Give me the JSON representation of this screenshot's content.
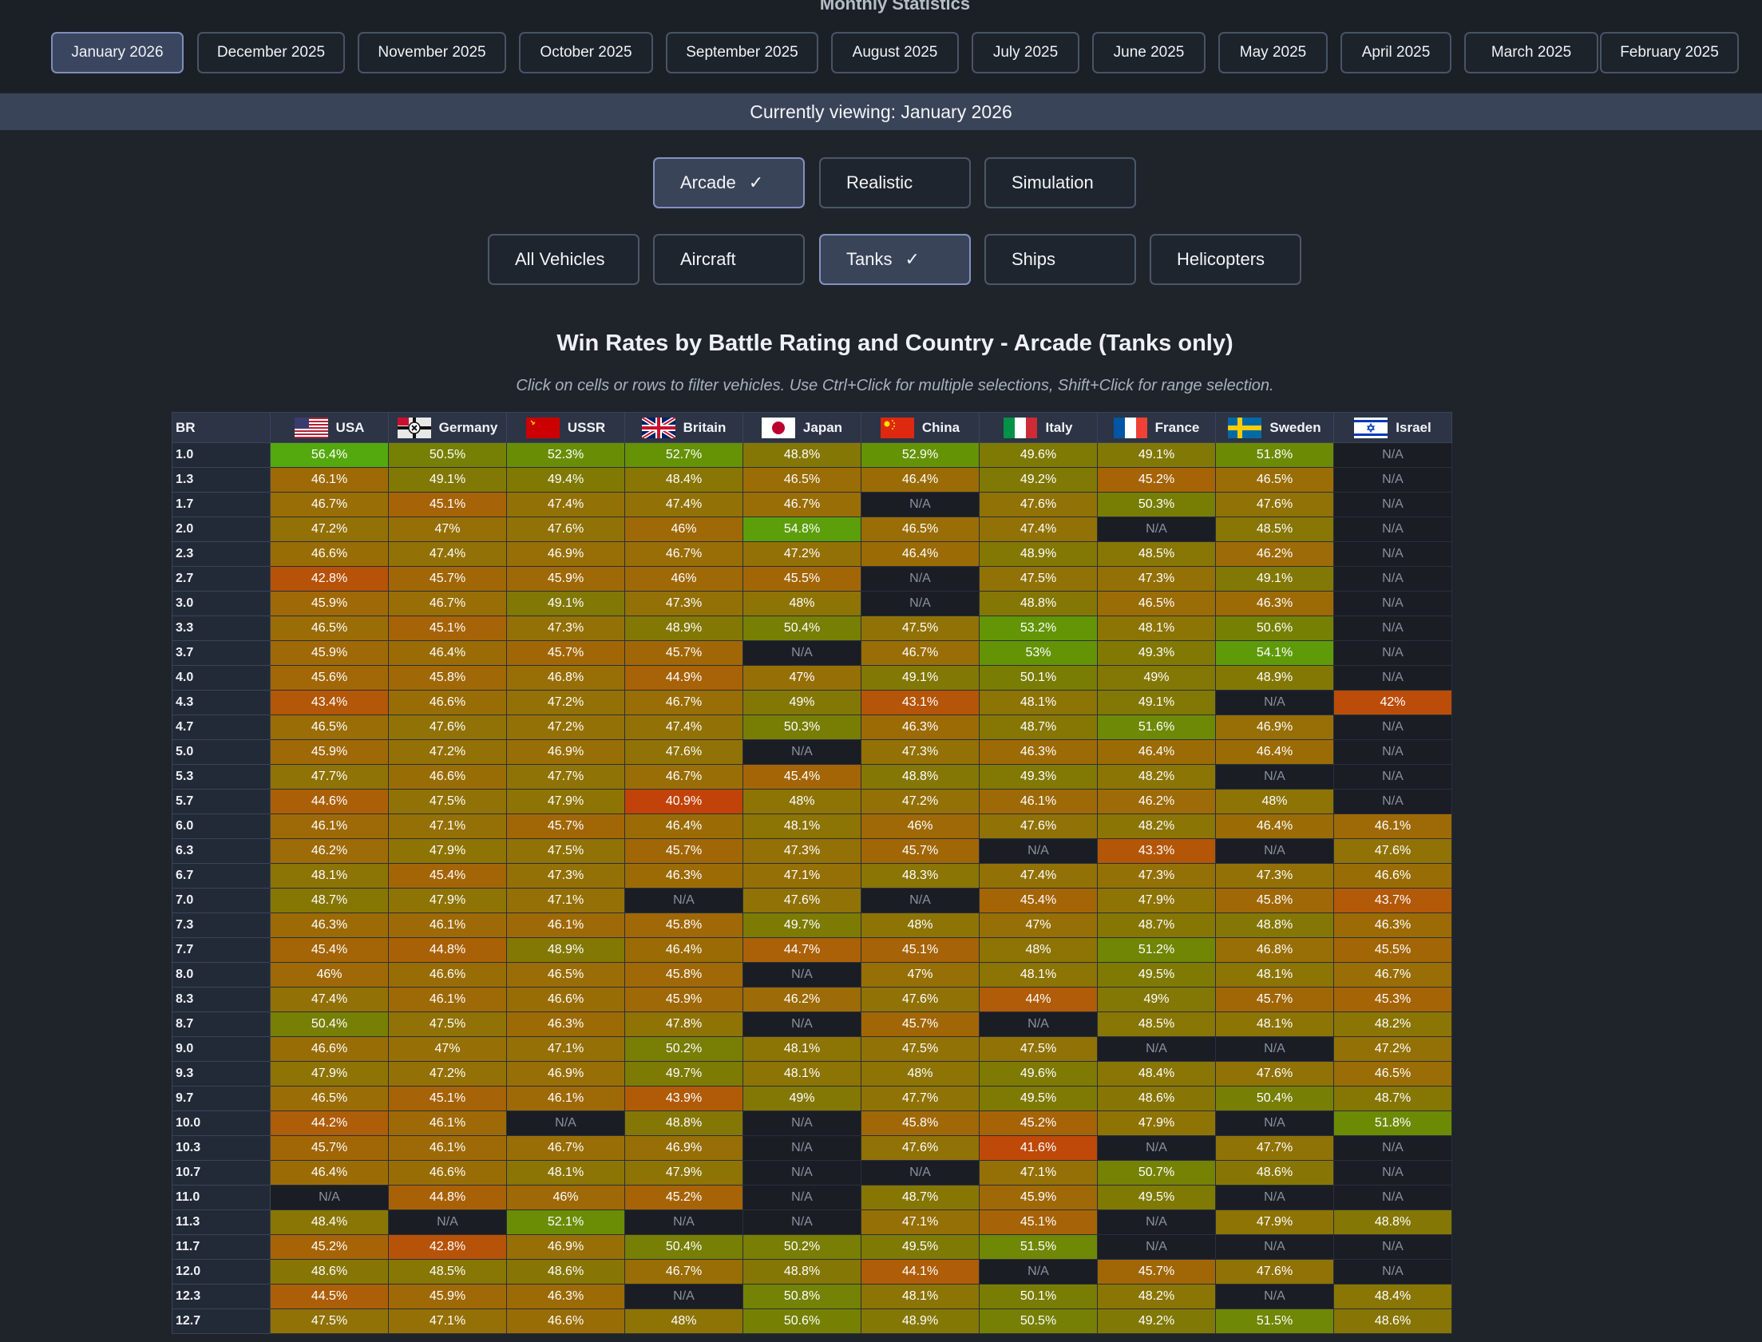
{
  "page_title": "Monthly Statistics",
  "months": [
    {
      "label": "January 2026",
      "active": true
    },
    {
      "label": "December 2025"
    },
    {
      "label": "November 2025"
    },
    {
      "label": "October 2025"
    },
    {
      "label": "September 2025"
    },
    {
      "label": "August 2025"
    },
    {
      "label": "July 2025"
    },
    {
      "label": "June 2025"
    },
    {
      "label": "May 2025"
    },
    {
      "label": "April 2025"
    },
    {
      "label": "March 2025"
    },
    {
      "label": "February 2025"
    }
  ],
  "viewing_label": "Currently viewing: January 2026",
  "modes": [
    {
      "label": "Arcade",
      "active": true
    },
    {
      "label": "Realistic"
    },
    {
      "label": "Simulation"
    }
  ],
  "vehicle_types": [
    {
      "label": "All Vehicles"
    },
    {
      "label": "Aircraft"
    },
    {
      "label": "Tanks",
      "active": true
    },
    {
      "label": "Ships"
    },
    {
      "label": "Helicopters"
    }
  ],
  "check_glyph": "✓",
  "table": {
    "title": "Win Rates by Battle Rating and Country - Arcade (Tanks only)",
    "hint": "Click on cells or rows to filter vehicles. Use Ctrl+Click for multiple selections, Shift+Click for range selection.",
    "br_header": "BR",
    "countries": [
      {
        "name": "USA",
        "flag": "usa-flag"
      },
      {
        "name": "Germany",
        "flag": "germany-flag"
      },
      {
        "name": "USSR",
        "flag": "ussr-flag"
      },
      {
        "name": "Britain",
        "flag": "britain-flag"
      },
      {
        "name": "Japan",
        "flag": "japan-flag"
      },
      {
        "name": "China",
        "flag": "china-flag"
      },
      {
        "name": "Italy",
        "flag": "italy-flag"
      },
      {
        "name": "France",
        "flag": "france-flag"
      },
      {
        "name": "Sweden",
        "flag": "sweden-flag"
      },
      {
        "name": "Israel",
        "flag": "israel-flag"
      }
    ],
    "rows": [
      {
        "br": "1.0",
        "values": [
          "56.4%",
          "50.5%",
          "52.3%",
          "52.7%",
          "48.8%",
          "52.9%",
          "49.6%",
          "49.1%",
          "51.8%",
          "N/A"
        ]
      },
      {
        "br": "1.3",
        "values": [
          "46.1%",
          "49.1%",
          "49.4%",
          "48.4%",
          "46.5%",
          "46.4%",
          "49.2%",
          "45.2%",
          "46.5%",
          "N/A"
        ]
      },
      {
        "br": "1.7",
        "values": [
          "46.7%",
          "45.1%",
          "47.4%",
          "47.4%",
          "46.7%",
          "N/A",
          "47.6%",
          "50.3%",
          "47.6%",
          "N/A"
        ]
      },
      {
        "br": "2.0",
        "values": [
          "47.2%",
          "47%",
          "47.6%",
          "46%",
          "54.8%",
          "46.5%",
          "47.4%",
          "N/A",
          "48.5%",
          "N/A"
        ]
      },
      {
        "br": "2.3",
        "values": [
          "46.6%",
          "47.4%",
          "46.9%",
          "46.7%",
          "47.2%",
          "46.4%",
          "48.9%",
          "48.5%",
          "46.2%",
          "N/A"
        ]
      },
      {
        "br": "2.7",
        "values": [
          "42.8%",
          "45.7%",
          "45.9%",
          "46%",
          "45.5%",
          "N/A",
          "47.5%",
          "47.3%",
          "49.1%",
          "N/A"
        ]
      },
      {
        "br": "3.0",
        "values": [
          "45.9%",
          "46.7%",
          "49.1%",
          "47.3%",
          "48%",
          "N/A",
          "48.8%",
          "46.5%",
          "46.3%",
          "N/A"
        ]
      },
      {
        "br": "3.3",
        "values": [
          "46.5%",
          "45.1%",
          "47.3%",
          "48.9%",
          "50.4%",
          "47.5%",
          "53.2%",
          "48.1%",
          "50.6%",
          "N/A"
        ]
      },
      {
        "br": "3.7",
        "values": [
          "45.9%",
          "46.4%",
          "45.7%",
          "45.7%",
          "N/A",
          "46.7%",
          "53%",
          "49.3%",
          "54.1%",
          "N/A"
        ]
      },
      {
        "br": "4.0",
        "values": [
          "45.6%",
          "45.8%",
          "46.8%",
          "44.9%",
          "47%",
          "49.1%",
          "50.1%",
          "49%",
          "48.9%",
          "N/A"
        ]
      },
      {
        "br": "4.3",
        "values": [
          "43.4%",
          "46.6%",
          "47.2%",
          "46.7%",
          "49%",
          "43.1%",
          "48.1%",
          "49.1%",
          "N/A",
          "42%"
        ]
      },
      {
        "br": "4.7",
        "values": [
          "46.5%",
          "47.6%",
          "47.2%",
          "47.4%",
          "50.3%",
          "46.3%",
          "48.7%",
          "51.6%",
          "46.9%",
          "N/A"
        ]
      },
      {
        "br": "5.0",
        "values": [
          "45.9%",
          "47.2%",
          "46.9%",
          "47.6%",
          "N/A",
          "47.3%",
          "46.3%",
          "46.4%",
          "46.4%",
          "N/A"
        ]
      },
      {
        "br": "5.3",
        "values": [
          "47.7%",
          "46.6%",
          "47.7%",
          "46.7%",
          "45.4%",
          "48.8%",
          "49.3%",
          "48.2%",
          "N/A",
          "N/A"
        ]
      },
      {
        "br": "5.7",
        "values": [
          "44.6%",
          "47.5%",
          "47.9%",
          "40.9%",
          "48%",
          "47.2%",
          "46.1%",
          "46.2%",
          "48%",
          "N/A"
        ]
      },
      {
        "br": "6.0",
        "values": [
          "46.1%",
          "47.1%",
          "45.7%",
          "46.4%",
          "48.1%",
          "46%",
          "47.6%",
          "48.2%",
          "46.4%",
          "46.1%"
        ]
      },
      {
        "br": "6.3",
        "values": [
          "46.2%",
          "47.9%",
          "47.5%",
          "45.7%",
          "47.3%",
          "45.7%",
          "N/A",
          "43.3%",
          "N/A",
          "47.6%"
        ]
      },
      {
        "br": "6.7",
        "values": [
          "48.1%",
          "45.4%",
          "47.3%",
          "46.3%",
          "47.1%",
          "48.3%",
          "47.4%",
          "47.3%",
          "47.3%",
          "46.6%"
        ]
      },
      {
        "br": "7.0",
        "values": [
          "48.7%",
          "47.9%",
          "47.1%",
          "N/A",
          "47.6%",
          "N/A",
          "45.4%",
          "47.9%",
          "45.8%",
          "43.7%"
        ]
      },
      {
        "br": "7.3",
        "values": [
          "46.3%",
          "46.1%",
          "46.1%",
          "45.8%",
          "49.7%",
          "48%",
          "47%",
          "48.7%",
          "48.8%",
          "46.3%"
        ]
      },
      {
        "br": "7.7",
        "values": [
          "45.4%",
          "44.8%",
          "48.9%",
          "46.4%",
          "44.7%",
          "45.1%",
          "48%",
          "51.2%",
          "46.8%",
          "45.5%"
        ]
      },
      {
        "br": "8.0",
        "values": [
          "46%",
          "46.6%",
          "46.5%",
          "45.8%",
          "N/A",
          "47%",
          "48.1%",
          "49.5%",
          "48.1%",
          "46.7%"
        ]
      },
      {
        "br": "8.3",
        "values": [
          "47.4%",
          "46.1%",
          "46.6%",
          "45.9%",
          "46.2%",
          "47.6%",
          "44%",
          "49%",
          "45.7%",
          "45.3%"
        ]
      },
      {
        "br": "8.7",
        "values": [
          "50.4%",
          "47.5%",
          "46.3%",
          "47.8%",
          "N/A",
          "45.7%",
          "N/A",
          "48.5%",
          "48.1%",
          "48.2%"
        ]
      },
      {
        "br": "9.0",
        "values": [
          "46.6%",
          "47%",
          "47.1%",
          "50.2%",
          "48.1%",
          "47.5%",
          "47.5%",
          "N/A",
          "N/A",
          "47.2%"
        ]
      },
      {
        "br": "9.3",
        "values": [
          "47.9%",
          "47.2%",
          "46.9%",
          "49.7%",
          "48.1%",
          "48%",
          "49.6%",
          "48.4%",
          "47.6%",
          "46.5%"
        ]
      },
      {
        "br": "9.7",
        "values": [
          "46.5%",
          "45.1%",
          "46.1%",
          "43.9%",
          "49%",
          "47.7%",
          "49.5%",
          "48.6%",
          "50.4%",
          "48.7%"
        ]
      },
      {
        "br": "10.0",
        "values": [
          "44.2%",
          "46.1%",
          "N/A",
          "48.8%",
          "N/A",
          "45.8%",
          "45.2%",
          "47.9%",
          "N/A",
          "51.8%"
        ]
      },
      {
        "br": "10.3",
        "values": [
          "45.7%",
          "46.1%",
          "46.7%",
          "46.9%",
          "N/A",
          "47.6%",
          "41.6%",
          "N/A",
          "47.7%",
          "N/A"
        ]
      },
      {
        "br": "10.7",
        "values": [
          "46.4%",
          "46.6%",
          "48.1%",
          "47.9%",
          "N/A",
          "N/A",
          "47.1%",
          "50.7%",
          "48.6%",
          "N/A"
        ]
      },
      {
        "br": "11.0",
        "values": [
          "N/A",
          "44.8%",
          "46%",
          "45.2%",
          "N/A",
          "48.7%",
          "45.9%",
          "49.5%",
          "N/A",
          "N/A"
        ]
      },
      {
        "br": "11.3",
        "values": [
          "48.4%",
          "N/A",
          "52.1%",
          "N/A",
          "N/A",
          "47.1%",
          "45.1%",
          "N/A",
          "47.9%",
          "48.8%"
        ]
      },
      {
        "br": "11.7",
        "values": [
          "45.2%",
          "42.8%",
          "46.9%",
          "50.4%",
          "50.2%",
          "49.5%",
          "51.5%",
          "N/A",
          "N/A",
          "N/A"
        ]
      },
      {
        "br": "12.0",
        "values": [
          "48.6%",
          "48.5%",
          "48.6%",
          "46.7%",
          "48.8%",
          "44.1%",
          "N/A",
          "45.7%",
          "47.6%",
          "N/A"
        ]
      },
      {
        "br": "12.3",
        "values": [
          "44.5%",
          "45.9%",
          "46.3%",
          "N/A",
          "50.8%",
          "48.1%",
          "50.1%",
          "48.2%",
          "N/A",
          "48.4%"
        ]
      },
      {
        "br": "12.7",
        "values": [
          "47.5%",
          "47.1%",
          "46.6%",
          "48%",
          "50.6%",
          "48.9%",
          "50.5%",
          "49.2%",
          "51.5%",
          "48.6%"
        ]
      }
    ]
  }
}
